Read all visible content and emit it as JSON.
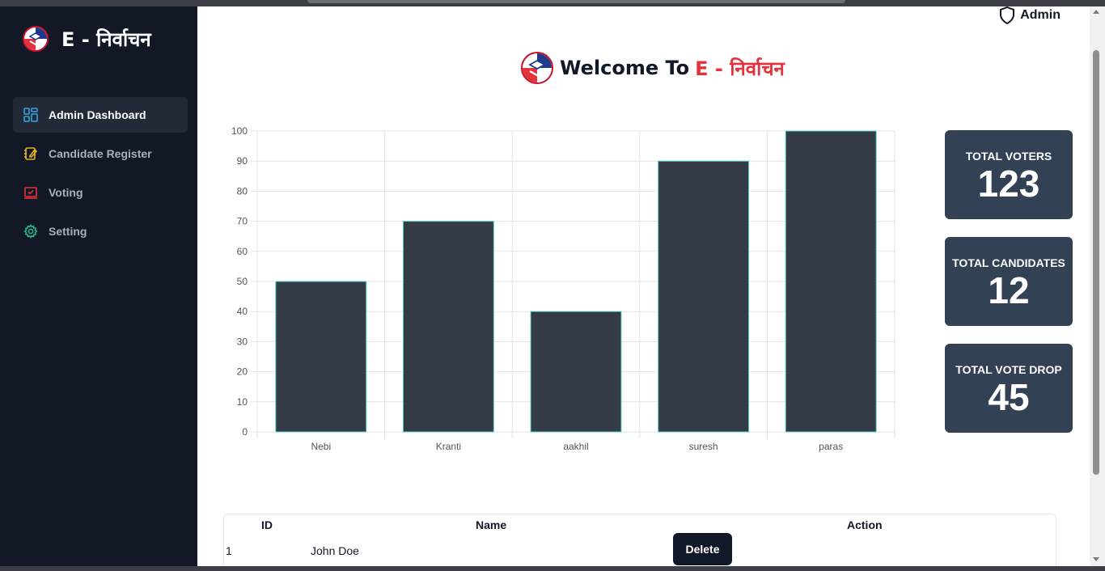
{
  "brand": {
    "name": "E - निर्वाचन"
  },
  "sidebar": {
    "items": [
      {
        "label": "Admin Dashboard",
        "icon": "dashboard-icon",
        "color": "#38a3e0",
        "active": true
      },
      {
        "label": "Candidate Register",
        "icon": "notebook-pen-icon",
        "color": "#e6b422",
        "active": false
      },
      {
        "label": "Voting",
        "icon": "checked-screen-icon",
        "color": "#e3323b",
        "active": false
      },
      {
        "label": "Setting",
        "icon": "gear-icon",
        "color": "#22c08a",
        "active": false
      }
    ]
  },
  "header": {
    "user_label": "Admin",
    "user_icon": "shield-icon"
  },
  "welcome": {
    "prefix": "Welcome To",
    "brand": "E - निर्वाचन",
    "brand_color": "#e3323b"
  },
  "chart_data": {
    "type": "bar",
    "categories": [
      "Nebi",
      "Kranti",
      "aakhil",
      "suresh",
      "paras"
    ],
    "values": [
      50,
      70,
      40,
      90,
      100
    ],
    "ylim": [
      0,
      100
    ],
    "yticks": [
      0,
      10,
      20,
      30,
      40,
      50,
      60,
      70,
      80,
      90,
      100
    ],
    "grid": true,
    "bar_color": "#343a46",
    "bar_border_color": "#4fd1c5"
  },
  "stats": [
    {
      "label": "TOTAL VOTERS",
      "value": "123"
    },
    {
      "label": "TOTAL CANDIDATES",
      "value": "12"
    },
    {
      "label": "TOTAL VOTE DROP",
      "value": "45"
    }
  ],
  "table": {
    "headers": {
      "id": "ID",
      "name": "Name",
      "action": "Action"
    },
    "rows": [
      {
        "id": "1",
        "name": "John Doe",
        "action": "Delete"
      }
    ]
  },
  "colors": {
    "sidebar_bg": "#121826",
    "card_bg": "#334155",
    "accent_red": "#e3323b"
  }
}
